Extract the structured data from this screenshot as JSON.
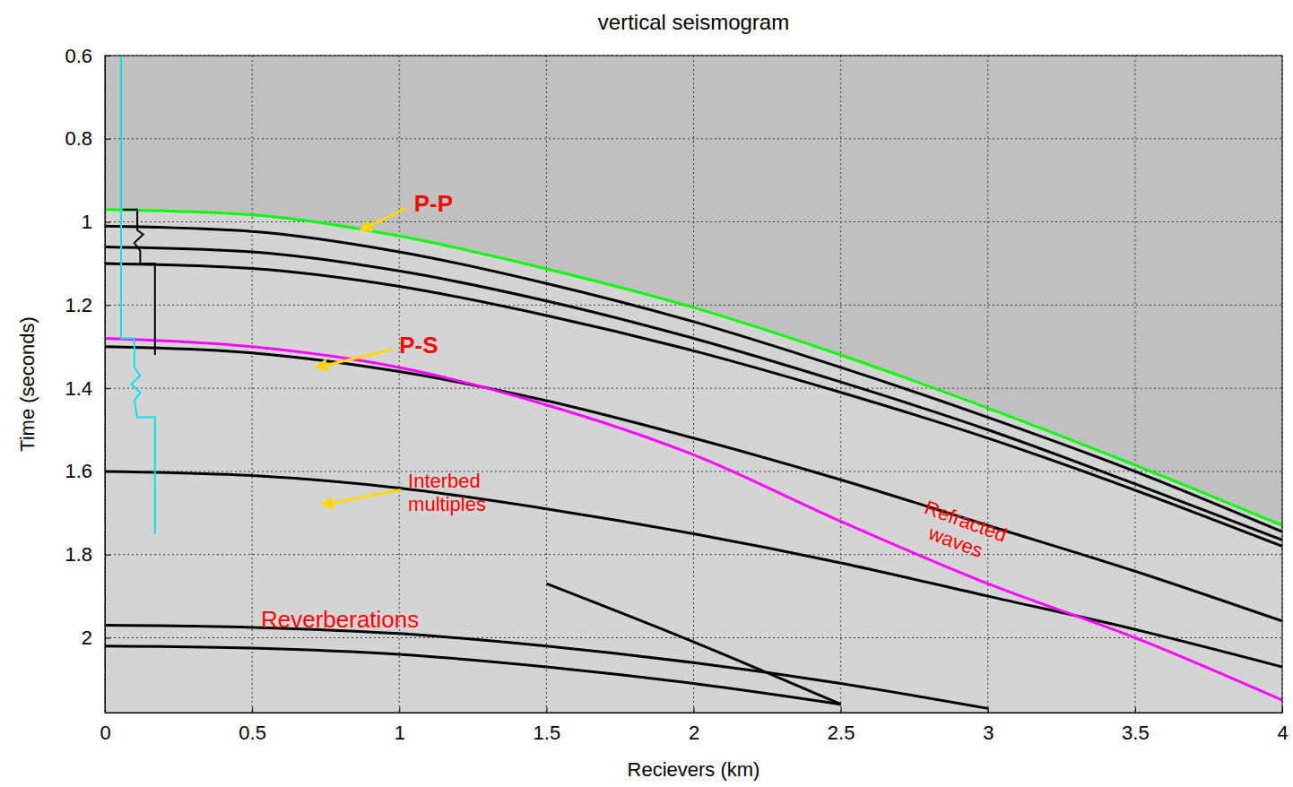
{
  "chart_data": {
    "type": "line",
    "title": "vertical seismogram",
    "x_label": "Recievers (km)",
    "y_label": "Time (seconds)",
    "x": [
      0,
      0.5,
      1,
      1.5,
      2,
      2.5,
      3,
      3.5,
      4
    ],
    "xlim": [
      0,
      4
    ],
    "ylim": [
      2.18,
      0.6
    ],
    "xticks": [
      0,
      0.5,
      1,
      1.5,
      2,
      2.5,
      3,
      3.5,
      4
    ],
    "yticks": [
      0.6,
      0.8,
      1,
      1.2,
      1.4,
      1.6,
      1.8,
      2
    ],
    "grid": true,
    "series": [
      {
        "color": "#000000",
        "values": [
          1.01,
          1.023,
          1.072,
          1.148,
          1.24,
          1.35,
          1.47,
          1.6,
          1.745
        ]
      },
      {
        "color": "#000000",
        "values": [
          1.06,
          1.072,
          1.118,
          1.19,
          1.28,
          1.385,
          1.5,
          1.63,
          1.765
        ]
      },
      {
        "color": "#000000",
        "values": [
          1.1,
          1.112,
          1.155,
          1.225,
          1.31,
          1.41,
          1.52,
          1.645,
          1.78
        ]
      },
      {
        "color": "#000000",
        "values": [
          1.3,
          1.315,
          1.36,
          1.43,
          1.52,
          1.62,
          1.73,
          1.84,
          1.96
        ]
      },
      {
        "color": "#000000",
        "values": [
          1.6,
          1.61,
          1.64,
          1.69,
          1.75,
          1.82,
          1.9,
          1.98,
          2.07
        ]
      },
      {
        "color": "#000000",
        "values": [
          1.97,
          1.975,
          1.99,
          2.02,
          2.06,
          2.11,
          2.17,
          null,
          null
        ]
      },
      {
        "color": "#000000",
        "values": [
          2.02,
          2.025,
          2.04,
          2.07,
          2.11,
          2.16,
          null,
          null,
          null
        ]
      },
      {
        "color": "#000000",
        "values": [
          null,
          null,
          null,
          1.87,
          2.01,
          2.16,
          null,
          null,
          null
        ]
      },
      {
        "color": "#00ff00",
        "values": [
          0.97,
          0.983,
          1.034,
          1.113,
          1.206,
          1.32,
          1.448,
          1.585,
          1.73
        ]
      },
      {
        "color": "#ff00ff",
        "values": [
          1.28,
          1.3,
          1.35,
          1.44,
          1.56,
          1.72,
          1.87,
          2.0,
          2.15
        ]
      },
      {
        "color": "#00e5ee",
        "x": [
          0.055,
          0.055,
          0.1,
          0.1,
          0.12,
          0.09,
          0.12,
          0.1,
          0.11,
          0.17,
          0.17
        ],
        "values": [
          0.6,
          1.28,
          1.28,
          1.35,
          1.37,
          1.39,
          1.41,
          1.43,
          1.47,
          1.47,
          1.75
        ]
      },
      {
        "color": "#000000",
        "x": [
          0.06,
          0.11,
          0.11,
          0.13,
          0.1,
          0.12,
          0.12,
          0.17,
          0.17
        ],
        "values": [
          0.97,
          0.97,
          1.02,
          1.03,
          1.05,
          1.07,
          1.1,
          1.1,
          1.32
        ]
      }
    ],
    "annotations": [
      {
        "text": "P-P",
        "x": 1.05,
        "y": 0.975,
        "arrow": [
          0.87,
          1.02
        ]
      },
      {
        "text": "P-S",
        "x": 1.0,
        "y": 1.315,
        "arrow": [
          0.72,
          1.35
        ]
      },
      {
        "text": "Interbed multiples",
        "x": 1.03,
        "y": 1.64,
        "arrow": [
          0.74,
          1.68
        ]
      },
      {
        "text": "Refracted waves",
        "x": 2.78,
        "y": 1.7
      },
      {
        "text": "Reverberations",
        "x": 0.53,
        "y": 1.975
      }
    ]
  }
}
